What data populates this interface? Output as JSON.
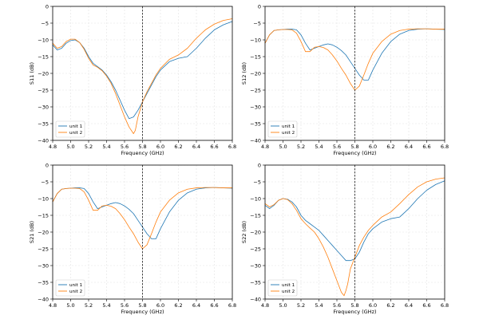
{
  "figure": {
    "marker_x": 5.8,
    "colors": {
      "unit 1": "#1f77b4",
      "unit 2": "#ff7f0e",
      "marker": "#000000",
      "grid": "#e3e3e3"
    }
  },
  "chart_data": [
    {
      "type": "line",
      "title": "",
      "xlabel": "Frequency (GHz)",
      "ylabel": "S11 (dB)",
      "xlim": [
        4.8,
        6.8
      ],
      "ylim": [
        -40,
        0
      ],
      "xticks": [
        "4.8",
        "5.0",
        "5.2",
        "5.4",
        "5.6",
        "5.8",
        "6.0",
        "6.2",
        "6.4",
        "6.6",
        "6.8"
      ],
      "yticks": [
        "0",
        "−5",
        "−10",
        "−15",
        "−20",
        "−25",
        "−30",
        "−35",
        "−40"
      ],
      "grid": true,
      "legend": "bottom-left",
      "vline": 5.8,
      "series": [
        {
          "name": "unit 1",
          "x": [
            4.8,
            4.85,
            4.9,
            4.95,
            5.0,
            5.05,
            5.1,
            5.15,
            5.2,
            5.25,
            5.3,
            5.35,
            5.4,
            5.45,
            5.5,
            5.55,
            5.6,
            5.65,
            5.7,
            5.75,
            5.8,
            5.85,
            5.9,
            5.95,
            6.0,
            6.1,
            6.2,
            6.3,
            6.4,
            6.5,
            6.6,
            6.7,
            6.8
          ],
          "y": [
            -11.5,
            -13.0,
            -12.5,
            -11.0,
            -10.2,
            -10.0,
            -10.8,
            -12.5,
            -15.0,
            -17.0,
            -18.0,
            -19.0,
            -20.5,
            -22.5,
            -25.0,
            -28.0,
            -31.0,
            -33.5,
            -33.0,
            -31.0,
            -28.5,
            -26.0,
            -23.5,
            -21.0,
            -19.0,
            -16.5,
            -15.5,
            -15.0,
            -12.5,
            -9.5,
            -7.0,
            -5.5,
            -4.5
          ]
        },
        {
          "name": "unit 2",
          "x": [
            4.8,
            4.85,
            4.9,
            4.95,
            5.0,
            5.05,
            5.1,
            5.15,
            5.2,
            5.25,
            5.3,
            5.35,
            5.4,
            5.45,
            5.5,
            5.55,
            5.6,
            5.65,
            5.7,
            5.72,
            5.75,
            5.8,
            5.85,
            5.9,
            5.95,
            6.0,
            6.1,
            6.2,
            6.3,
            6.4,
            6.5,
            6.6,
            6.7,
            6.8
          ],
          "y": [
            -11.0,
            -12.5,
            -12.0,
            -10.5,
            -9.8,
            -9.8,
            -10.8,
            -12.8,
            -15.5,
            -17.5,
            -18.2,
            -19.2,
            -20.8,
            -23.0,
            -26.0,
            -29.5,
            -33.0,
            -36.0,
            -38.0,
            -37.0,
            -33.0,
            -28.5,
            -25.5,
            -23.0,
            -20.5,
            -18.5,
            -15.8,
            -14.5,
            -12.5,
            -9.5,
            -7.0,
            -5.3,
            -4.2,
            -3.7
          ]
        }
      ]
    },
    {
      "type": "line",
      "title": "",
      "xlabel": "Frequency (GHz)",
      "ylabel": "S12 (dB)",
      "xlim": [
        4.8,
        6.8
      ],
      "ylim": [
        -40,
        0
      ],
      "xticks": [
        "4.8",
        "5.0",
        "5.2",
        "5.4",
        "5.6",
        "5.8",
        "6.0",
        "6.2",
        "6.4",
        "6.6",
        "6.8"
      ],
      "yticks": [
        "0",
        "−5",
        "−10",
        "−15",
        "−20",
        "−25",
        "−30",
        "−35",
        "−40"
      ],
      "grid": true,
      "legend": "bottom-left",
      "vline": 5.8,
      "series": [
        {
          "name": "unit 1",
          "x": [
            4.8,
            4.85,
            4.9,
            4.95,
            5.0,
            5.05,
            5.1,
            5.15,
            5.2,
            5.25,
            5.3,
            5.35,
            5.4,
            5.45,
            5.5,
            5.55,
            5.6,
            5.65,
            5.7,
            5.75,
            5.8,
            5.85,
            5.9,
            5.95,
            6.0,
            6.1,
            6.2,
            6.3,
            6.4,
            6.5,
            6.6,
            6.7,
            6.8
          ],
          "y": [
            -11.0,
            -8.5,
            -7.2,
            -7.0,
            -6.9,
            -6.8,
            -6.8,
            -7.0,
            -8.5,
            -11.0,
            -13.0,
            -12.5,
            -12.0,
            -11.5,
            -11.2,
            -11.5,
            -12.2,
            -13.2,
            -14.5,
            -16.5,
            -18.5,
            -20.5,
            -22.0,
            -22.0,
            -19.0,
            -14.0,
            -10.5,
            -8.3,
            -7.2,
            -6.8,
            -6.7,
            -6.8,
            -6.9
          ]
        },
        {
          "name": "unit 2",
          "x": [
            4.8,
            4.85,
            4.9,
            4.95,
            5.0,
            5.05,
            5.1,
            5.15,
            5.2,
            5.25,
            5.3,
            5.35,
            5.4,
            5.45,
            5.5,
            5.55,
            5.6,
            5.65,
            5.7,
            5.75,
            5.8,
            5.85,
            5.9,
            5.95,
            6.0,
            6.1,
            6.2,
            6.3,
            6.4,
            6.5,
            6.6,
            6.7,
            6.8
          ],
          "y": [
            -11.0,
            -8.5,
            -7.2,
            -7.0,
            -6.9,
            -6.9,
            -7.0,
            -8.0,
            -10.5,
            -13.5,
            -13.5,
            -12.2,
            -12.0,
            -12.3,
            -13.0,
            -14.5,
            -16.3,
            -18.5,
            -20.5,
            -23.0,
            -25.0,
            -23.8,
            -20.5,
            -17.0,
            -14.0,
            -10.5,
            -8.3,
            -7.2,
            -6.8,
            -6.7,
            -6.7,
            -6.8,
            -6.8
          ]
        }
      ]
    },
    {
      "type": "line",
      "title": "",
      "xlabel": "Frequency (GHz)",
      "ylabel": "S21 (dB)",
      "xlim": [
        4.8,
        6.8
      ],
      "ylim": [
        -40,
        0
      ],
      "xticks": [
        "4.8",
        "5.0",
        "5.2",
        "5.4",
        "5.6",
        "5.8",
        "6.0",
        "6.2",
        "6.4",
        "6.6",
        "6.8"
      ],
      "yticks": [
        "0",
        "−5",
        "−10",
        "−15",
        "−20",
        "−25",
        "−30",
        "−35",
        "−40"
      ],
      "grid": true,
      "legend": "bottom-left",
      "vline": 5.8,
      "series": [
        {
          "name": "unit 1",
          "x": [
            4.8,
            4.85,
            4.9,
            4.95,
            5.0,
            5.05,
            5.1,
            5.15,
            5.2,
            5.25,
            5.3,
            5.35,
            5.4,
            5.45,
            5.5,
            5.55,
            5.6,
            5.65,
            5.7,
            5.75,
            5.8,
            5.85,
            5.9,
            5.95,
            6.0,
            6.1,
            6.2,
            6.3,
            6.4,
            6.5,
            6.6,
            6.7,
            6.8
          ],
          "y": [
            -11.0,
            -8.5,
            -7.2,
            -7.0,
            -6.9,
            -6.8,
            -6.8,
            -7.0,
            -8.5,
            -11.0,
            -13.0,
            -12.5,
            -12.0,
            -11.5,
            -11.2,
            -11.5,
            -12.2,
            -13.2,
            -14.5,
            -16.5,
            -18.5,
            -20.5,
            -22.0,
            -22.0,
            -19.0,
            -14.0,
            -10.5,
            -8.3,
            -7.2,
            -6.8,
            -6.7,
            -6.8,
            -6.9
          ]
        },
        {
          "name": "unit 2",
          "x": [
            4.8,
            4.85,
            4.9,
            4.95,
            5.0,
            5.05,
            5.1,
            5.15,
            5.2,
            5.25,
            5.3,
            5.35,
            5.4,
            5.45,
            5.5,
            5.55,
            5.6,
            5.65,
            5.7,
            5.75,
            5.8,
            5.85,
            5.9,
            5.95,
            6.0,
            6.1,
            6.2,
            6.3,
            6.4,
            6.5,
            6.6,
            6.7,
            6.8
          ],
          "y": [
            -11.0,
            -8.5,
            -7.2,
            -7.0,
            -6.9,
            -6.9,
            -7.0,
            -8.0,
            -10.5,
            -13.5,
            -13.5,
            -12.2,
            -12.0,
            -12.3,
            -13.0,
            -14.5,
            -16.3,
            -18.5,
            -20.5,
            -23.0,
            -25.0,
            -23.8,
            -20.5,
            -17.0,
            -14.0,
            -10.5,
            -8.3,
            -7.2,
            -6.8,
            -6.7,
            -6.7,
            -6.8,
            -6.8
          ]
        }
      ]
    },
    {
      "type": "line",
      "title": "",
      "xlabel": "Frequency (GHz)",
      "ylabel": "S22 (dB)",
      "xlim": [
        4.8,
        6.8
      ],
      "ylim": [
        -40,
        0
      ],
      "xticks": [
        "4.8",
        "5.0",
        "5.2",
        "5.4",
        "5.6",
        "5.8",
        "6.0",
        "6.2",
        "6.4",
        "6.6",
        "6.8"
      ],
      "yticks": [
        "0",
        "−5",
        "−10",
        "−15",
        "−20",
        "−25",
        "−30",
        "−35",
        "−40"
      ],
      "grid": true,
      "legend": "bottom-left",
      "vline": 5.8,
      "series": [
        {
          "name": "unit 1",
          "x": [
            4.8,
            4.85,
            4.9,
            4.95,
            5.0,
            5.05,
            5.1,
            5.15,
            5.2,
            5.25,
            5.3,
            5.35,
            5.4,
            5.45,
            5.5,
            5.55,
            5.6,
            5.65,
            5.7,
            5.75,
            5.8,
            5.85,
            5.9,
            5.95,
            6.0,
            6.1,
            6.2,
            6.3,
            6.4,
            6.5,
            6.6,
            6.7,
            6.8
          ],
          "y": [
            -12.0,
            -13.0,
            -12.0,
            -10.5,
            -10.0,
            -10.2,
            -11.0,
            -12.5,
            -15.0,
            -16.5,
            -17.5,
            -18.5,
            -19.5,
            -21.0,
            -22.5,
            -24.0,
            -25.5,
            -27.0,
            -28.5,
            -28.5,
            -28.0,
            -26.0,
            -23.0,
            -20.5,
            -19.0,
            -17.0,
            -16.0,
            -15.5,
            -13.0,
            -10.0,
            -7.5,
            -5.8,
            -4.7
          ]
        },
        {
          "name": "unit 2",
          "x": [
            4.8,
            4.85,
            4.9,
            4.95,
            5.0,
            5.05,
            5.1,
            5.15,
            5.2,
            5.25,
            5.3,
            5.35,
            5.4,
            5.45,
            5.5,
            5.55,
            5.6,
            5.65,
            5.68,
            5.7,
            5.72,
            5.75,
            5.8,
            5.85,
            5.9,
            5.95,
            6.0,
            6.1,
            6.2,
            6.3,
            6.4,
            6.5,
            6.6,
            6.7,
            6.8
          ],
          "y": [
            -11.5,
            -12.5,
            -11.8,
            -10.5,
            -10.0,
            -10.3,
            -11.5,
            -13.5,
            -16.0,
            -17.5,
            -18.8,
            -20.0,
            -22.0,
            -24.5,
            -27.5,
            -31.0,
            -34.5,
            -38.0,
            -39.0,
            -37.5,
            -35.5,
            -31.0,
            -27.5,
            -24.0,
            -21.5,
            -19.5,
            -18.0,
            -15.5,
            -14.0,
            -11.5,
            -8.8,
            -6.5,
            -5.0,
            -4.2,
            -3.8
          ]
        }
      ]
    }
  ]
}
